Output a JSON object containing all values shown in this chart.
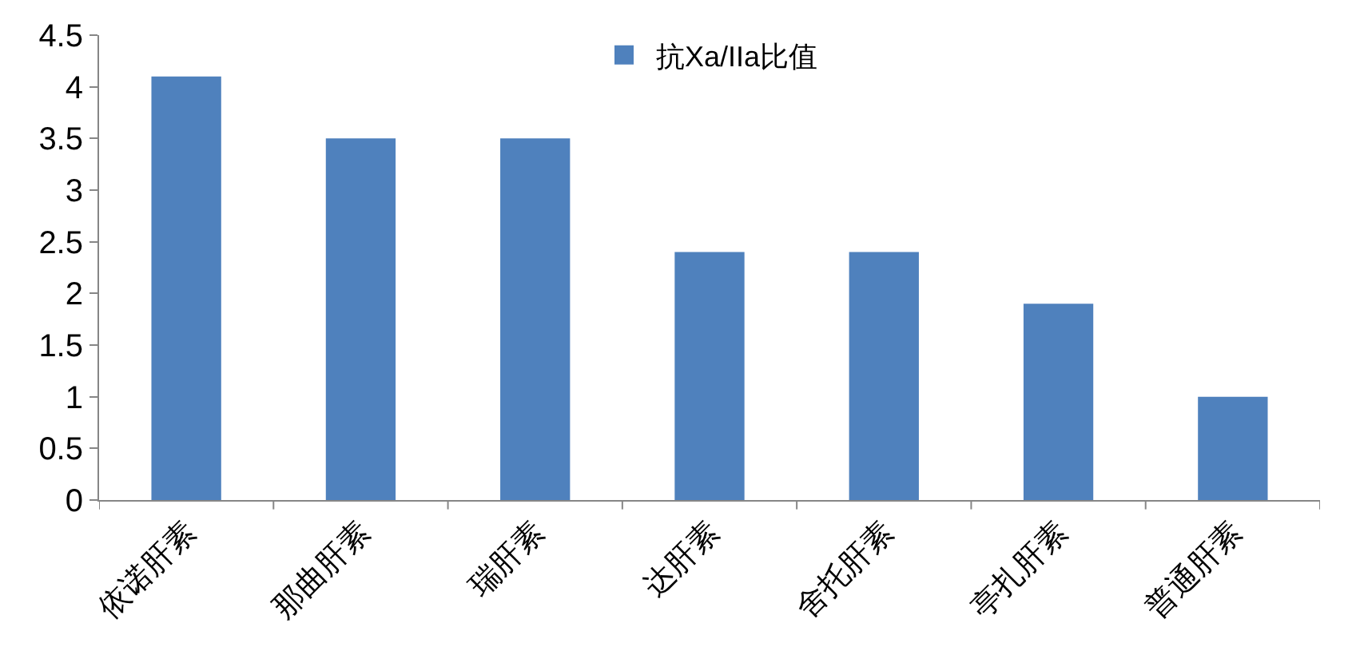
{
  "chart_data": {
    "type": "bar",
    "categories": [
      "依诺肝素",
      "那曲肝素",
      "瑞肝素",
      "达肝素",
      "舍托肝素",
      "亭扎肝素",
      "普通肝素"
    ],
    "series": [
      {
        "name": "抗Xa/IIa比值",
        "color": "#4f81bd",
        "values": [
          4.1,
          3.5,
          3.5,
          2.4,
          2.4,
          1.9,
          1.0
        ]
      }
    ],
    "ylim": [
      0,
      4.5
    ],
    "yticks": [
      0,
      0.5,
      1,
      1.5,
      2,
      2.5,
      3,
      3.5,
      4,
      4.5
    ],
    "grid": false,
    "legend": "top"
  }
}
